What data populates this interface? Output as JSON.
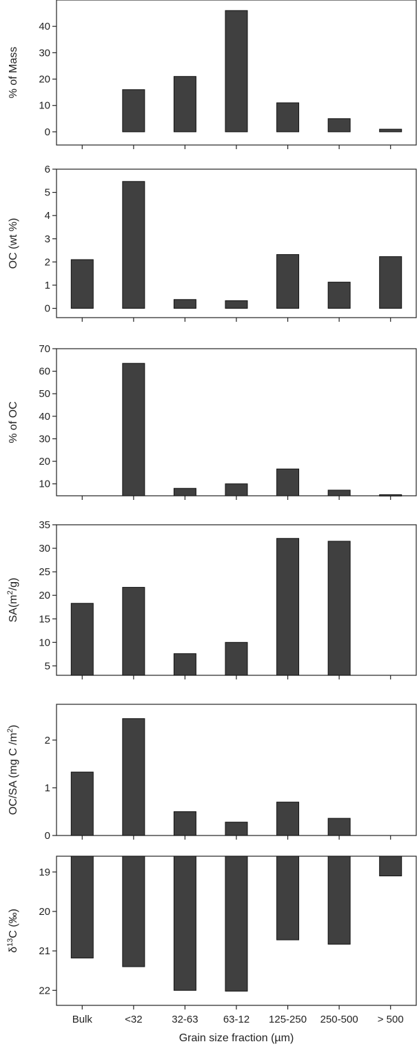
{
  "chart_data": [
    {
      "type": "bar",
      "ylabel": "% of Mass",
      "categories": [
        "Bulk",
        "<32",
        "32-63",
        "63-12",
        "125-250",
        "250-500",
        "> 500"
      ],
      "values": [
        null,
        16,
        21,
        46,
        11,
        5,
        1
      ],
      "ylim": [
        -5,
        50
      ],
      "yticks": [
        0,
        10,
        20,
        30,
        40
      ],
      "inverted": false,
      "color": "#404040"
    },
    {
      "type": "bar",
      "ylabel": "OC (wt %)",
      "categories": [
        "Bulk",
        "<32",
        "32-63",
        "63-12",
        "125-250",
        "250-500",
        "> 500"
      ],
      "values": [
        2.1,
        5.47,
        0.38,
        0.33,
        2.32,
        1.13,
        2.23
      ],
      "ylim": [
        -0.4,
        6
      ],
      "yticks": [
        0,
        1,
        2,
        3,
        4,
        5,
        6
      ],
      "inverted": false,
      "color": "#404040"
    },
    {
      "type": "bar",
      "ylabel": "% of OC",
      "categories": [
        "Bulk",
        "<32",
        "32-63",
        "63-12",
        "125-250",
        "250-500",
        "> 500"
      ],
      "values": [
        null,
        63.5,
        8,
        10,
        16.6,
        7.2,
        5.2
      ],
      "ylim": [
        4.7,
        70
      ],
      "yticks": [
        10,
        20,
        30,
        40,
        50,
        60,
        70
      ],
      "inverted": false,
      "color": "#404040"
    },
    {
      "type": "bar",
      "ylabel": "SA(m²/g)",
      "categories": [
        "Bulk",
        "<32",
        "32-63",
        "63-12",
        "125-250",
        "250-500",
        "> 500"
      ],
      "values": [
        18.3,
        21.7,
        7.6,
        10,
        32.1,
        31.5,
        null
      ],
      "ylim": [
        3,
        35
      ],
      "yticks": [
        5,
        10,
        15,
        20,
        25,
        30,
        35
      ],
      "inverted": false,
      "color": "#404040"
    },
    {
      "type": "bar",
      "ylabel": "OC/SA (mg C /m²)",
      "categories": [
        "Bulk",
        "<32",
        "32-63",
        "63-12",
        "125-250",
        "250-500",
        "> 500"
      ],
      "values": [
        1.33,
        2.45,
        0.5,
        0.28,
        0.7,
        0.36,
        null
      ],
      "ylim": [
        0,
        2.75
      ],
      "yticks": [
        0,
        1,
        2
      ],
      "inverted": false,
      "color": "#404040"
    },
    {
      "type": "bar",
      "ylabel": "δ13C (‰)",
      "categories": [
        "Bulk",
        "<32",
        "32-63",
        "63-12",
        "125-250",
        "250-500",
        "> 500"
      ],
      "values": [
        21.18,
        21.4,
        22.0,
        22.02,
        20.72,
        20.83,
        19.1
      ],
      "ylim": [
        18.6,
        22.38
      ],
      "yticks": [
        19,
        20,
        21,
        22
      ],
      "inverted": true,
      "color": "#404040"
    }
  ],
  "xlabel": "Grain size fraction (µm)"
}
